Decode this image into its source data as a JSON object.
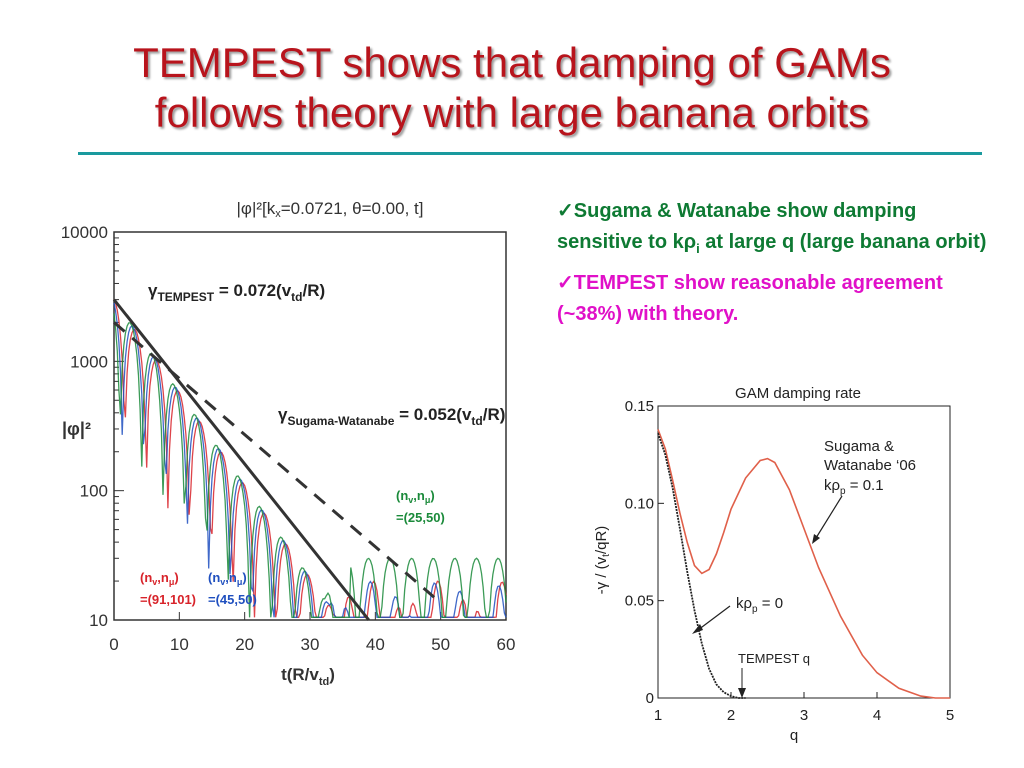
{
  "slide": {
    "title_line1": "TEMPEST shows that damping of GAMs",
    "title_line2": "follows theory with large banana orbits"
  },
  "bullets": [
    {
      "check": "✓",
      "text": "Sugama & Watanabe show damping sensitive to kρi at large q (large banana orbit)",
      "color": "#0e7a33"
    },
    {
      "check": "✓",
      "text": "TEMPEST show reasonable agreement (~38%) with theory.",
      "color": "#e010c8"
    }
  ],
  "chart_data": [
    {
      "type": "line",
      "title": "|φ|²[kx=0.0721, θ=0.00, t]",
      "xlabel": "t(R/vtd)",
      "ylabel": "|φ|²",
      "xlim": [
        0,
        60
      ],
      "ylim": [
        10,
        10000
      ],
      "yscale": "log",
      "xticks": [
        "0",
        "10",
        "20",
        "30",
        "40",
        "50",
        "60"
      ],
      "yticks": [
        "10",
        "100",
        "1000",
        "10000"
      ],
      "fits": [
        {
          "name": "γTEMPEST = 0.072(vtd/R)",
          "style": "solid",
          "x": [
            0,
            39
          ],
          "y": [
            3000,
            10
          ]
        },
        {
          "name": "γSugama-Watanabe = 0.052(vtd/R)",
          "style": "dashed",
          "x": [
            0,
            49
          ],
          "y": [
            2000,
            15
          ]
        }
      ],
      "series_labels": [
        {
          "text": "(nv,nμ)=(91,101)",
          "color": "#d8232a"
        },
        {
          "text": "(nv,nμ)=(45,50)",
          "color": "#1f4fbf"
        },
        {
          "text": "(nv,nμ)=(25,50)",
          "color": "#1a8a3a"
        }
      ]
    },
    {
      "type": "line",
      "title": "GAM damping rate",
      "xlabel": "q",
      "ylabel": "-γ / (vt/qR)",
      "xlim": [
        1,
        5
      ],
      "ylim": [
        0,
        0.15
      ],
      "xticks": [
        "1",
        "2",
        "3",
        "4",
        "5"
      ],
      "yticks": [
        "0",
        "0.05",
        "0.10",
        "0.15"
      ],
      "series": [
        {
          "name": "Sugama & Watanabe '06 kρp = 0.1",
          "x": [
            1.0,
            1.1,
            1.2,
            1.3,
            1.4,
            1.5,
            1.6,
            1.7,
            1.8,
            1.9,
            2.0,
            2.2,
            2.4,
            2.5,
            2.6,
            2.8,
            3.0,
            3.2,
            3.5,
            3.8,
            4.0,
            4.3,
            4.6,
            4.8,
            5.0
          ],
          "y": [
            0.138,
            0.128,
            0.112,
            0.095,
            0.08,
            0.068,
            0.064,
            0.066,
            0.074,
            0.085,
            0.097,
            0.113,
            0.122,
            0.123,
            0.121,
            0.107,
            0.087,
            0.067,
            0.042,
            0.022,
            0.013,
            0.005,
            0.001,
            0.0,
            0.0
          ],
          "color": "#e0604a"
        },
        {
          "name": "kρp = 0",
          "x": [
            1.0,
            1.1,
            1.2,
            1.3,
            1.4,
            1.5,
            1.6,
            1.7,
            1.8,
            1.9,
            2.0,
            2.1,
            2.2
          ],
          "y": [
            0.136,
            0.125,
            0.108,
            0.087,
            0.065,
            0.045,
            0.028,
            0.015,
            0.007,
            0.003,
            0.001,
            0.0,
            0.0
          ],
          "color": "#222222"
        }
      ],
      "annotations": [
        "Sugama & Watanabe '06 kρp = 0.1",
        "kρp = 0",
        "TEMPEST q"
      ],
      "tempest_q": 2.2
    }
  ]
}
